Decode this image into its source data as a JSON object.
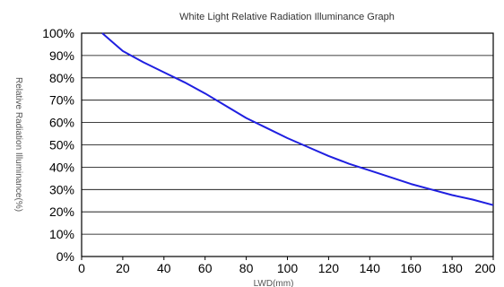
{
  "chart_data": {
    "type": "line",
    "title": "White Light Relative Radiation Illuminance Graph",
    "xlabel": "LWD(mm)",
    "ylabel": "Relative Radiation Illuminance(%)",
    "xlim": [
      0,
      200
    ],
    "ylim": [
      0,
      100
    ],
    "x_ticks": [
      0,
      20,
      40,
      60,
      80,
      100,
      120,
      140,
      160,
      180,
      200
    ],
    "y_ticks": [
      0,
      10,
      20,
      30,
      40,
      50,
      60,
      70,
      80,
      90,
      100
    ],
    "y_tick_labels": [
      "0%",
      "10%",
      "20%",
      "30%",
      "40%",
      "50%",
      "60%",
      "70%",
      "80%",
      "90%",
      "100%"
    ],
    "grid": "horizontal",
    "line_color": "#1f1fe0",
    "series": [
      {
        "x": [
          10,
          20,
          30,
          40,
          50,
          60,
          70,
          80,
          90,
          100,
          110,
          120,
          130,
          140,
          150,
          160,
          170,
          180,
          190,
          200
        ],
        "values": [
          100,
          92,
          87,
          82.5,
          78,
          73,
          67.5,
          62,
          57.5,
          53,
          49,
          45,
          41.5,
          38.5,
          35.5,
          32.5,
          30,
          27.5,
          25.5,
          23
        ]
      }
    ]
  }
}
